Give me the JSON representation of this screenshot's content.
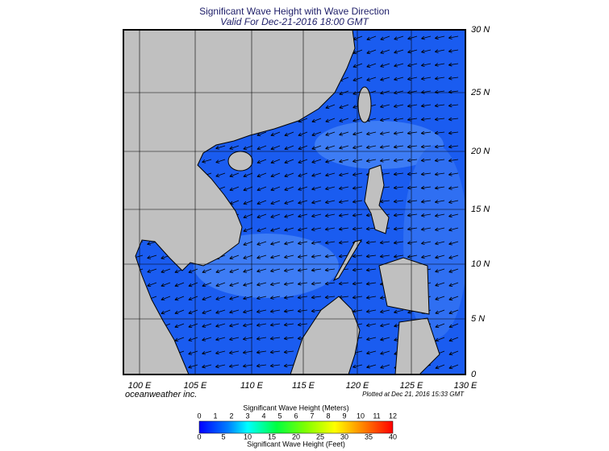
{
  "title": "Significant Wave Height with Wave Direction",
  "subtitle": "Valid For Dec-21-2016 18:00 GMT",
  "latitude_labels": [
    "30 N",
    "25 N",
    "20 N",
    "15 N",
    "10 N",
    "5 N",
    "0"
  ],
  "longitude_labels": [
    "100 E",
    "105 E",
    "110 E",
    "115 E",
    "120 E",
    "125 E",
    "130 E"
  ],
  "credit": "oceanweather inc.",
  "plotted": "Plotted at Dec 21, 2016 15:33 GMT",
  "colorbar": {
    "title_top": "Significant Wave Height (Meters)",
    "meters": [
      0,
      1,
      2,
      3,
      4,
      5,
      6,
      7,
      8,
      9,
      10,
      11,
      12
    ],
    "feet": [
      0,
      5,
      10,
      15,
      20,
      25,
      30,
      35,
      40
    ],
    "title_bottom": "Significant Wave Height (Feet)"
  }
}
